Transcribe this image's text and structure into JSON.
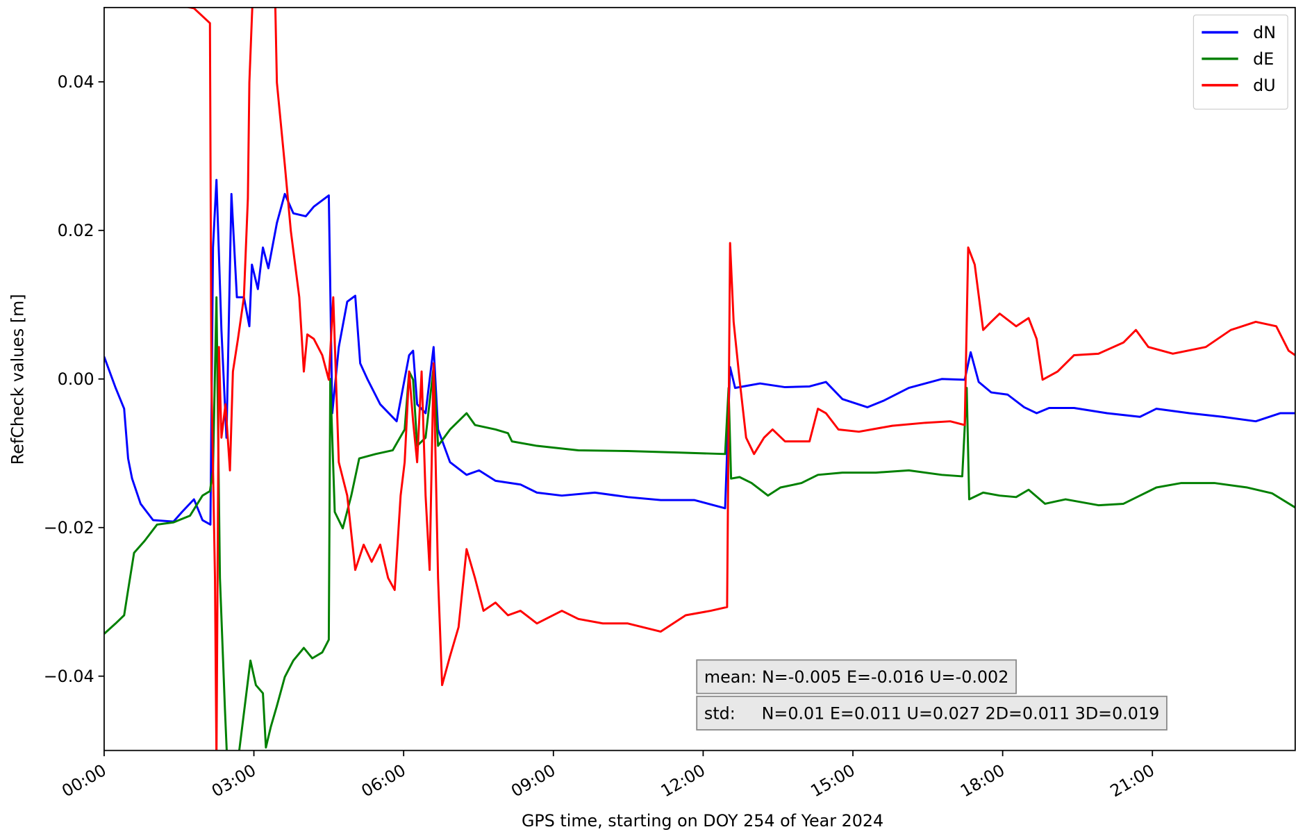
{
  "chart_data": {
    "type": "line",
    "xlabel": "GPS time, starting on DOY 254 of Year 2024",
    "ylabel": "RefCheck values [m]",
    "xlim": [
      0,
      23.86
    ],
    "xticks": [
      {
        "value": 0,
        "label": "00:00"
      },
      {
        "value": 3,
        "label": "03:00"
      },
      {
        "value": 6,
        "label": "06:00"
      },
      {
        "value": 9,
        "label": "09:00"
      },
      {
        "value": 12,
        "label": "12:00"
      },
      {
        "value": 15,
        "label": "15:00"
      },
      {
        "value": 18,
        "label": "18:00"
      },
      {
        "value": 21,
        "label": "21:00"
      }
    ],
    "ylim": [
      -0.05,
      0.05
    ],
    "yticks": [
      {
        "value": -0.04,
        "label": "−0.04"
      },
      {
        "value": -0.02,
        "label": "−0.02"
      },
      {
        "value": 0,
        "label": "0.00"
      },
      0.02,
      0.04
    ],
    "legend": "upper right",
    "annotations": [
      "mean: N=-0.005 E=-0.016 U=-0.002",
      "std:     N=0.01 E=0.011 U=0.027 2D=0.011 3D=0.019"
    ],
    "series": [
      {
        "name": "dN",
        "color": "#0000ff",
        "x": [
          0.0,
          0.23,
          0.4,
          0.48,
          0.56,
          0.73,
          0.98,
          1.39,
          1.56,
          1.8,
          1.97,
          2.13,
          2.18,
          2.25,
          2.35,
          2.45,
          2.55,
          2.66,
          2.8,
          2.91,
          2.96,
          3.08,
          3.18,
          3.29,
          3.46,
          3.62,
          3.79,
          4.04,
          4.2,
          4.5,
          4.57,
          4.7,
          4.87,
          5.03,
          5.13,
          5.28,
          5.53,
          5.86,
          6.11,
          6.19,
          6.27,
          6.44,
          6.6,
          6.69,
          6.93,
          7.26,
          7.51,
          7.84,
          8.34,
          8.67,
          9.17,
          9.83,
          10.49,
          11.15,
          11.82,
          12.44,
          12.54,
          12.64,
          12.89,
          13.14,
          13.64,
          14.13,
          14.46,
          14.79,
          15.29,
          15.62,
          16.12,
          16.78,
          17.24,
          17.36,
          17.52,
          17.77,
          18.1,
          18.43,
          18.68,
          18.93,
          19.43,
          20.09,
          20.75,
          21.08,
          21.74,
          22.41,
          23.07,
          23.56,
          23.86
        ],
        "values": [
          0.003,
          -0.0012,
          -0.004,
          -0.0107,
          -0.0134,
          -0.0168,
          -0.019,
          -0.0192,
          -0.0179,
          -0.0162,
          -0.019,
          -0.0196,
          0.0177,
          0.0268,
          0.0066,
          -0.0079,
          0.0249,
          0.011,
          0.011,
          0.0071,
          0.0154,
          0.0121,
          0.0177,
          0.0149,
          0.021,
          0.0249,
          0.0223,
          0.0219,
          0.0232,
          0.0247,
          -0.0046,
          0.0043,
          0.0104,
          0.0112,
          0.0021,
          -0.0001,
          -0.0034,
          -0.0057,
          0.0032,
          0.0038,
          -0.0034,
          -0.0046,
          0.0043,
          -0.0068,
          -0.0112,
          -0.0129,
          -0.0123,
          -0.0137,
          -0.0142,
          -0.0153,
          -0.0157,
          -0.0153,
          -0.0159,
          -0.0163,
          -0.0163,
          -0.0174,
          0.0016,
          -0.0012,
          -0.0009,
          -0.0006,
          -0.0011,
          -0.001,
          -0.0004,
          -0.0027,
          -0.0038,
          -0.0029,
          -0.0012,
          0.0,
          -0.0001,
          0.0036,
          -0.0004,
          -0.0018,
          -0.0021,
          -0.0038,
          -0.0046,
          -0.0039,
          -0.0039,
          -0.0046,
          -0.0051,
          -0.004,
          -0.0046,
          -0.0051,
          -0.0057,
          -0.0046,
          -0.0046
        ]
      },
      {
        "name": "dE",
        "color": "#008000",
        "x": [
          0.0,
          0.23,
          0.4,
          0.48,
          0.6,
          0.81,
          1.06,
          1.39,
          1.72,
          1.97,
          2.12,
          2.18,
          2.25,
          2.32,
          2.42,
          2.52,
          2.93,
          3.04,
          3.18,
          3.24,
          3.34,
          3.46,
          3.62,
          3.79,
          4.0,
          4.17,
          4.37,
          4.5,
          4.53,
          4.62,
          4.78,
          4.95,
          5.11,
          5.44,
          5.78,
          6.02,
          6.11,
          6.19,
          6.27,
          6.44,
          6.6,
          6.69,
          6.93,
          7.26,
          7.43,
          7.84,
          8.09,
          8.17,
          8.67,
          9.5,
          10.49,
          11.48,
          12.44,
          12.51,
          12.56,
          12.73,
          12.97,
          13.3,
          13.55,
          13.97,
          14.3,
          14.79,
          15.46,
          16.12,
          16.78,
          17.19,
          17.28,
          17.33,
          17.61,
          17.94,
          18.27,
          18.52,
          18.85,
          19.26,
          19.92,
          20.42,
          20.75,
          21.08,
          21.58,
          22.24,
          22.9,
          23.4,
          23.86
        ],
        "values": [
          -0.0343,
          -0.0329,
          -0.0318,
          -0.0284,
          -0.0234,
          -0.0218,
          -0.0196,
          -0.0193,
          -0.0184,
          -0.0157,
          -0.0151,
          -0.0123,
          0.011,
          -0.0268,
          -0.0446,
          -0.0601,
          -0.0379,
          -0.0412,
          -0.0423,
          -0.0496,
          -0.0468,
          -0.044,
          -0.0401,
          -0.0379,
          -0.0362,
          -0.0376,
          -0.0368,
          -0.0351,
          0.0,
          -0.0179,
          -0.0201,
          -0.0157,
          -0.0107,
          -0.0101,
          -0.0096,
          -0.0068,
          0.001,
          -0.0001,
          -0.009,
          -0.0079,
          0.0016,
          -0.009,
          -0.0068,
          -0.0046,
          -0.0062,
          -0.0068,
          -0.0073,
          -0.0084,
          -0.009,
          -0.0096,
          -0.0097,
          -0.0099,
          -0.0101,
          -0.0012,
          -0.0134,
          -0.0132,
          -0.014,
          -0.0157,
          -0.0146,
          -0.014,
          -0.0129,
          -0.0126,
          -0.0126,
          -0.0123,
          -0.0129,
          -0.0131,
          -0.0012,
          -0.0162,
          -0.0153,
          -0.0157,
          -0.0159,
          -0.0149,
          -0.0168,
          -0.0162,
          -0.017,
          -0.0168,
          -0.0157,
          -0.0146,
          -0.014,
          -0.014,
          -0.0146,
          -0.0154,
          -0.0173
        ]
      },
      {
        "name": "dU",
        "color": "#ff0000",
        "x": [
          1.65,
          1.8,
          2.12,
          2.15,
          2.22,
          2.25,
          2.3,
          2.35,
          2.43,
          2.52,
          2.58,
          2.68,
          2.8,
          2.88,
          2.91,
          2.96,
          3.01,
          3.41,
          3.46,
          3.62,
          3.74,
          3.91,
          4.0,
          4.07,
          4.2,
          4.37,
          4.5,
          4.59,
          4.7,
          4.87,
          5.03,
          5.2,
          5.36,
          5.53,
          5.69,
          5.82,
          5.94,
          6.02,
          6.11,
          6.19,
          6.27,
          6.36,
          6.44,
          6.52,
          6.6,
          6.69,
          6.77,
          6.93,
          7.1,
          7.26,
          7.43,
          7.6,
          7.84,
          8.09,
          8.34,
          8.67,
          9.17,
          9.5,
          9.99,
          10.49,
          11.15,
          11.65,
          12.15,
          12.48,
          12.54,
          12.61,
          12.73,
          12.86,
          13.02,
          13.22,
          13.39,
          13.64,
          14.13,
          14.3,
          14.46,
          14.71,
          15.12,
          15.79,
          16.45,
          16.95,
          17.24,
          17.31,
          17.44,
          17.61,
          17.77,
          17.94,
          18.27,
          18.52,
          18.68,
          18.8,
          19.1,
          19.43,
          19.92,
          20.42,
          20.67,
          20.92,
          21.41,
          22.07,
          22.57,
          23.07,
          23.48,
          23.73,
          23.86
        ],
        "values": [
          0.0501,
          0.0499,
          0.0479,
          -0.0001,
          -0.0268,
          -0.0512,
          0.0043,
          -0.0079,
          -0.0034,
          -0.0123,
          0.001,
          0.0054,
          0.011,
          0.0243,
          0.0399,
          0.0488,
          0.0566,
          0.0566,
          0.0399,
          0.0288,
          0.0199,
          0.011,
          0.001,
          0.006,
          0.0054,
          0.0032,
          -0.0001,
          0.011,
          -0.0112,
          -0.0157,
          -0.0257,
          -0.0223,
          -0.0246,
          -0.0223,
          -0.0268,
          -0.0284,
          -0.0157,
          -0.0112,
          0.001,
          -0.0057,
          -0.0112,
          0.001,
          -0.0157,
          -0.0257,
          0.0021,
          -0.0268,
          -0.0412,
          -0.0373,
          -0.0334,
          -0.0229,
          -0.0268,
          -0.0312,
          -0.0301,
          -0.0318,
          -0.0312,
          -0.0329,
          -0.0312,
          -0.0323,
          -0.0329,
          -0.0329,
          -0.034,
          -0.0318,
          -0.0312,
          -0.0307,
          0.0183,
          0.0077,
          -0.0001,
          -0.0079,
          -0.0101,
          -0.0079,
          -0.0068,
          -0.0084,
          -0.0084,
          -0.004,
          -0.0046,
          -0.0068,
          -0.0071,
          -0.0063,
          -0.0059,
          -0.0057,
          -0.0062,
          0.0177,
          0.0154,
          0.0066,
          0.0077,
          0.0088,
          0.0071,
          0.0082,
          0.0054,
          -0.0001,
          0.001,
          0.0032,
          0.0034,
          0.0049,
          0.0066,
          0.0043,
          0.0034,
          0.0043,
          0.0066,
          0.0077,
          0.0071,
          0.0038,
          0.0032
        ]
      }
    ]
  }
}
